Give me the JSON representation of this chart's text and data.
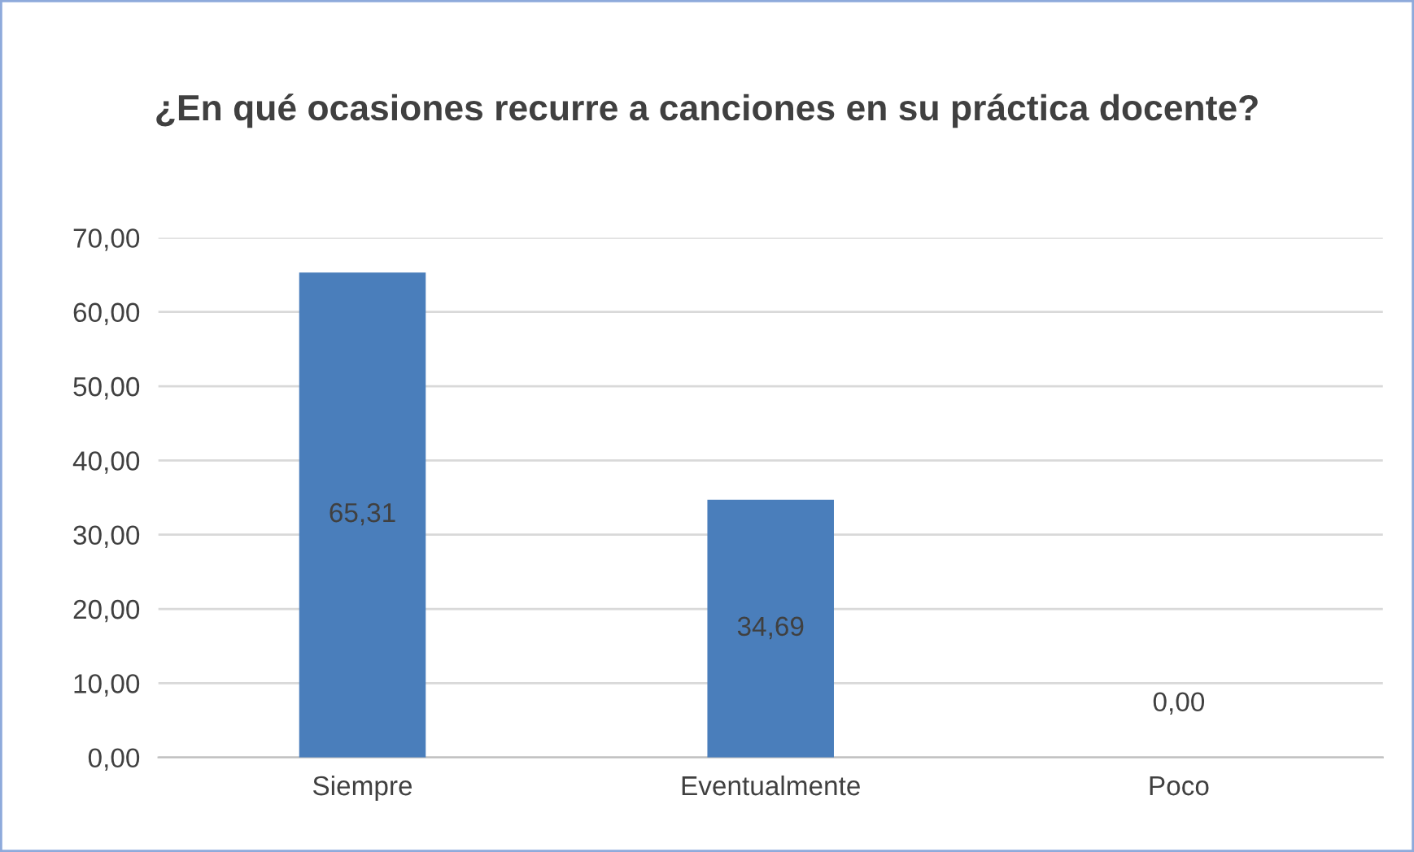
{
  "chart_data": {
    "type": "bar",
    "title": "¿En qué ocasiones recurre a canciones en su práctica docente?",
    "categories": [
      "Siempre",
      "Eventualmente",
      "Poco"
    ],
    "values": [
      65.31,
      34.69,
      0
    ],
    "value_labels": [
      "65,31",
      "34,69",
      "0,00"
    ],
    "color": "#4a7ebb",
    "ylim": [
      0,
      70
    ],
    "yticks": [
      {
        "value": 0,
        "label": "0,00"
      },
      {
        "value": 10,
        "label": "10,00"
      },
      {
        "value": 20,
        "label": "20,00"
      },
      {
        "value": 30,
        "label": "30,00"
      },
      {
        "value": 40,
        "label": "40,00"
      },
      {
        "value": 50,
        "label": "50,00"
      },
      {
        "value": 60,
        "label": "60,00"
      },
      {
        "value": 70,
        "label": "70,00"
      }
    ],
    "grid": "y"
  }
}
